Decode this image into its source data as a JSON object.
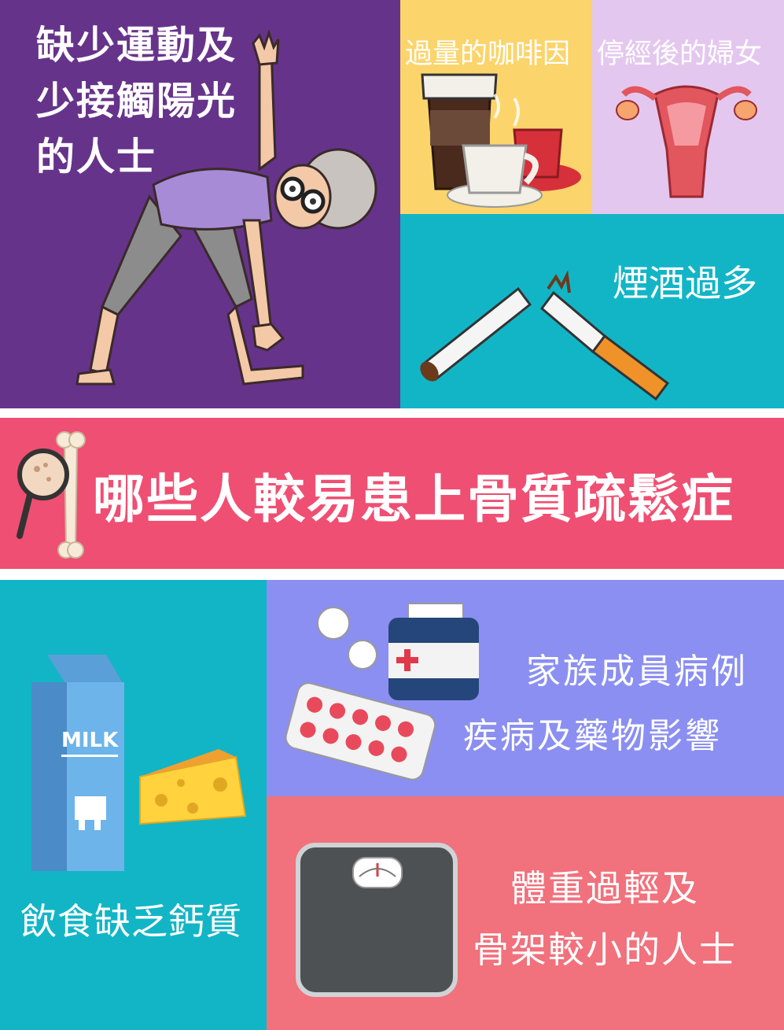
{
  "title": "哪些人較易患上骨質疏鬆症",
  "factors": {
    "exercise": "缺少運動及\n少接觸陽光\n的人士",
    "caffeine": "過量的咖啡因",
    "menopause": "停經後的婦女",
    "smoking": "煙酒過多",
    "diet": "飲食缺乏鈣質",
    "family_history": "家族成員病例",
    "illness_meds": "疾病及藥物影響",
    "low_weight": "體重過輕及\n骨架較小的人士"
  },
  "labels": {
    "milk": "MILK"
  },
  "colors": {
    "purple": "#66338a",
    "yellow": "#fbd46b",
    "lavender": "#e4c7ee",
    "teal": "#12b5c6",
    "pink": "#ef4f72",
    "periwinkle": "#8b8ff1",
    "salmon": "#f1717c"
  }
}
